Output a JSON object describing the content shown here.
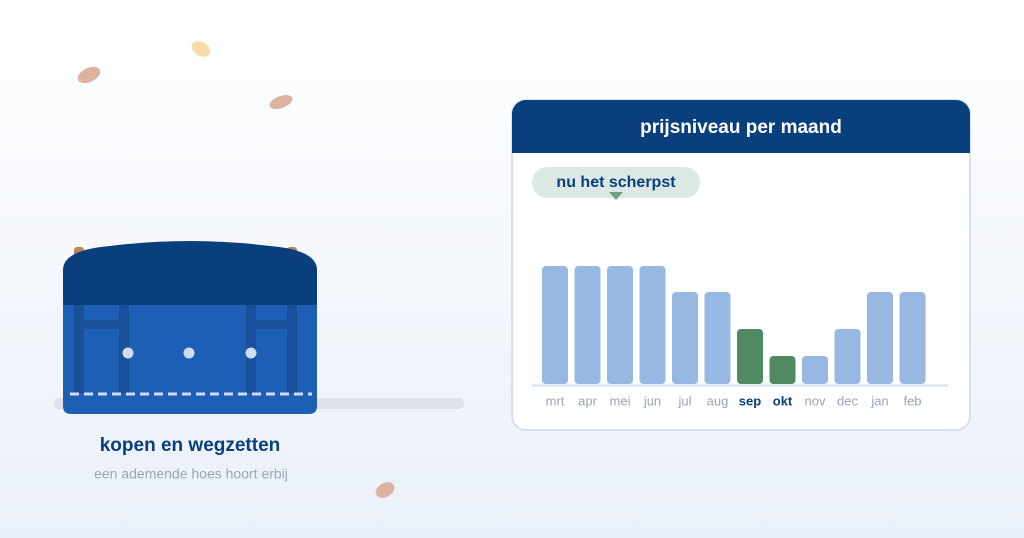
{
  "chart_data": {
    "type": "bar",
    "title": "prijsniveau per maand",
    "annotation": "nu het scherpst",
    "categories": [
      "mrt",
      "apr",
      "mei",
      "jun",
      "jul",
      "aug",
      "sep",
      "okt",
      "nov",
      "dec",
      "jan",
      "feb"
    ],
    "values": [
      118,
      118,
      118,
      118,
      92,
      92,
      55,
      28,
      28,
      55,
      92,
      92
    ],
    "color": "#97b8e2",
    "highlight_color": "#4f8a63",
    "highlighted": [
      false,
      false,
      false,
      false,
      false,
      false,
      true,
      true,
      false,
      false,
      false,
      false
    ]
  },
  "caption": {
    "title": "kopen en wegzetten",
    "subtitle": "een ademende hoes hoort erbij"
  }
}
